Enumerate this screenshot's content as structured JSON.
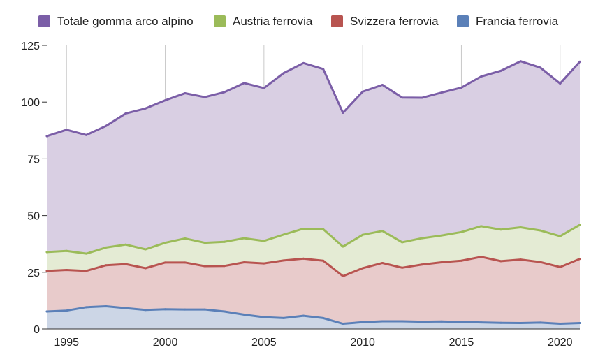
{
  "chart_data": {
    "type": "area",
    "stacked": false,
    "title": "",
    "xlabel": "",
    "ylabel": "",
    "x": [
      1994,
      1995,
      1996,
      1997,
      1998,
      1999,
      2000,
      2001,
      2002,
      2003,
      2004,
      2005,
      2006,
      2007,
      2008,
      2009,
      2010,
      2011,
      2012,
      2013,
      2014,
      2015,
      2016,
      2017,
      2018,
      2019,
      2020,
      2021
    ],
    "xlim": [
      1994,
      2021
    ],
    "ylim": [
      0,
      125
    ],
    "x_ticks": [
      1995,
      2000,
      2005,
      2010,
      2015,
      2020
    ],
    "y_ticks": [
      0,
      25,
      50,
      75,
      100,
      125
    ],
    "x_tick_labels": [
      "1995",
      "2000",
      "2005",
      "2010",
      "2015",
      "2020"
    ],
    "y_tick_labels": [
      "0",
      "25",
      "50",
      "75",
      "100",
      "125"
    ],
    "grid": "vertical",
    "legend_position": "top",
    "series": [
      {
        "name": "Totale gomma arco alpino",
        "color": "#7b5ea7",
        "fill": "#d9cfe3",
        "values": [
          85.0,
          87.8,
          85.5,
          89.5,
          95.0,
          97.2,
          100.8,
          103.9,
          102.2,
          104.4,
          108.4,
          106.2,
          112.8,
          117.2,
          114.6,
          95.3,
          104.6,
          107.6,
          102.0,
          101.9,
          104.2,
          106.4,
          111.3,
          113.8,
          118.0,
          115.2,
          108.2,
          117.8
        ]
      },
      {
        "name": "Austria ferrovia",
        "color": "#9bbb59",
        "fill": "#e4ebd4",
        "values": [
          33.9,
          34.4,
          33.2,
          35.9,
          37.2,
          35.1,
          38.0,
          39.9,
          38.0,
          38.4,
          40.0,
          38.8,
          41.6,
          44.2,
          44.0,
          36.3,
          41.5,
          43.2,
          38.2,
          40.0,
          41.2,
          42.7,
          45.3,
          43.8,
          44.8,
          43.4,
          40.9,
          45.9
        ]
      },
      {
        "name": "Svizzera ferrovia",
        "color": "#b85450",
        "fill": "#e8cbcb",
        "values": [
          25.6,
          26.0,
          25.6,
          28.1,
          28.6,
          26.8,
          29.3,
          29.3,
          27.7,
          27.8,
          29.4,
          28.9,
          30.2,
          31.0,
          30.1,
          23.3,
          26.8,
          29.1,
          27.0,
          28.4,
          29.4,
          30.1,
          31.8,
          29.9,
          30.6,
          29.5,
          27.3,
          30.9
        ]
      },
      {
        "name": "Francia ferrovia",
        "color": "#5b80b8",
        "fill": "#ccd6e6",
        "values": [
          7.7,
          8.1,
          9.6,
          10.0,
          9.2,
          8.4,
          8.7,
          8.6,
          8.6,
          7.7,
          6.3,
          5.2,
          4.8,
          5.8,
          4.8,
          2.3,
          3.0,
          3.4,
          3.4,
          3.2,
          3.3,
          3.1,
          2.9,
          2.7,
          2.6,
          2.8,
          2.3,
          2.6
        ]
      }
    ]
  }
}
